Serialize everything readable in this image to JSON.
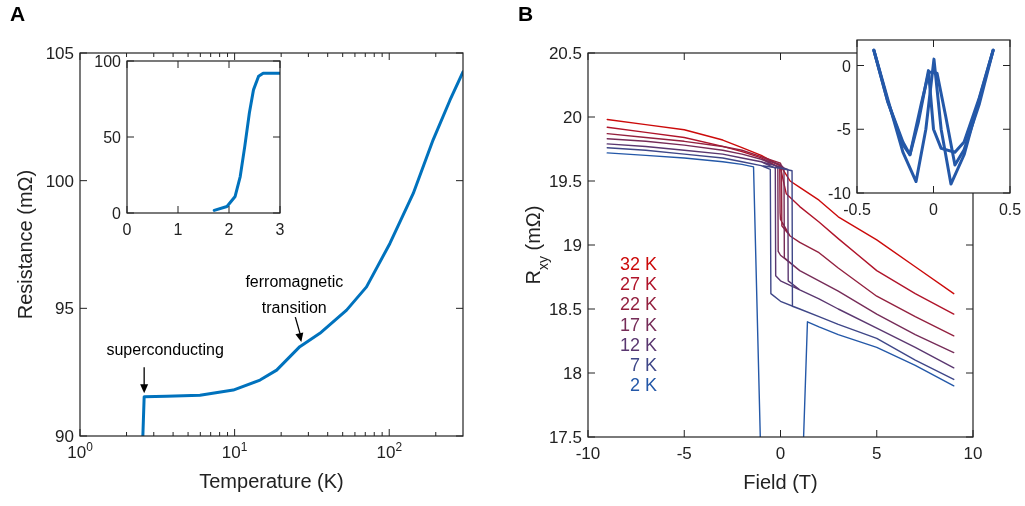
{
  "chart_data": [
    {
      "type": "line",
      "title": "A",
      "xlabel": "Temperature (K)",
      "ylabel": "Resistance (mΩ)",
      "log": "x",
      "color": "#0072bd",
      "x": [
        2.55,
        2.6,
        3.63,
        5.97,
        9.8,
        14.6,
        18.7,
        26.4,
        35.6,
        53,
        71.3,
        101,
        143,
        192,
        247,
        300
      ],
      "values": [
        90,
        91.54,
        91.56,
        91.6,
        91.8,
        92.19,
        92.58,
        93.5,
        94.02,
        94.93,
        95.84,
        97.54,
        99.5,
        101.59,
        103.15,
        104.26
      ],
      "xlim": [
        1,
        300
      ],
      "ylim": [
        90,
        105
      ],
      "xticks": [
        {
          "value": 1,
          "label": "10$^{0}$"
        },
        {
          "value": 2,
          "label": null
        },
        {
          "value": 3,
          "label": null
        },
        {
          "value": 4,
          "label": null
        },
        {
          "value": 5,
          "label": null
        },
        {
          "value": 6,
          "label": null
        },
        {
          "value": 7,
          "label": null
        },
        {
          "value": 8,
          "label": null
        },
        {
          "value": 9,
          "label": null
        },
        {
          "value": 10,
          "label": "10$^{1}$"
        },
        {
          "value": 20,
          "label": null
        },
        {
          "value": 30,
          "label": null
        },
        {
          "value": 40,
          "label": null
        },
        {
          "value": 50,
          "label": null
        },
        {
          "value": 60,
          "label": null
        },
        {
          "value": 70,
          "label": null
        },
        {
          "value": 80,
          "label": null
        },
        {
          "value": 90,
          "label": null
        },
        {
          "value": 100,
          "label": "10$^{2}$"
        },
        {
          "value": 200,
          "label": null
        }
      ],
      "yticks": [
        90,
        95,
        100,
        105
      ],
      "annotations": [
        {
          "text": "superconducting",
          "x": 2.6,
          "y": 91.6
        },
        {
          "text": "ferromagnetic\ntransition",
          "x": 27,
          "y": 93.6
        }
      ]
    },
    {
      "type": "line",
      "color": "#0072bd",
      "x": [
        1.71,
        1.96,
        2.12,
        2.22,
        2.31,
        2.4,
        2.48,
        2.58,
        2.67,
        3
      ],
      "values": [
        1.7,
        4.3,
        10.9,
        24,
        44,
        66,
        81,
        90,
        92,
        92
      ],
      "xlim": [
        0,
        3
      ],
      "ylim": [
        0,
        100
      ],
      "xticks": [
        0,
        1,
        2,
        3
      ],
      "yticks": [
        0,
        50,
        100
      ]
    },
    {
      "type": "line",
      "title": "B",
      "xlabel": "Field (T)",
      "ylabel": "R$_{xy}$ (mΩ)",
      "legend": "left",
      "xlim": [
        -10,
        10
      ],
      "ylim": [
        17.5,
        20.5
      ],
      "xticks": [
        -10,
        -5,
        0,
        5,
        10
      ],
      "yticks": [
        17.5,
        18,
        18.5,
        19,
        19.5,
        20,
        20.5
      ],
      "series": [
        {
          "name": "32 K",
          "color": "#cc0a0a",
          "x": [
            -9,
            -7,
            -5,
            -3,
            -2,
            -1,
            0,
            0.5,
            1,
            2,
            3,
            5,
            7,
            9
          ],
          "values": [
            19.98,
            19.94,
            19.9,
            19.82,
            19.76,
            19.7,
            19.62,
            19.5,
            19.45,
            19.35,
            19.22,
            19.04,
            18.83,
            18.62
          ]
        },
        {
          "name": "27 K",
          "color": "#b0142a",
          "x": [
            -9,
            -7,
            -5,
            -3,
            -2,
            -1,
            0,
            0.3,
            1,
            2,
            3,
            5,
            7,
            9
          ],
          "values": [
            19.92,
            19.88,
            19.84,
            19.77,
            19.73,
            19.68,
            19.6,
            19.4,
            19.3,
            19.18,
            19.05,
            18.8,
            18.62,
            18.46
          ]
        },
        {
          "name": "22 K",
          "color": "#93213f",
          "x": [
            -9,
            -7,
            -5,
            -3,
            -2,
            -1,
            0,
            0.05,
            0.07,
            0.5,
            1,
            2,
            3,
            5,
            7,
            9,
            5,
            1,
            0.5,
            0,
            -0.02,
            -0.04,
            -1
          ],
          "values": [
            19.87,
            19.84,
            19.81,
            19.77,
            19.74,
            19.69,
            19.64,
            19.6,
            19.15,
            19.07,
            19.02,
            18.94,
            18.82,
            18.6,
            18.44,
            18.29,
            null,
            19.02,
            19.07,
            19.2,
            19.25,
            19.62,
            19.69
          ]
        },
        {
          "name": "17 K",
          "color": "#762c58",
          "x": [
            -9,
            -7,
            -5,
            -3,
            -2,
            -1,
            0,
            0.18,
            0.2,
            1,
            2,
            3,
            5,
            7,
            9,
            5,
            1,
            0,
            -0.12,
            -0.14,
            -1
          ],
          "values": [
            19.83,
            19.81,
            19.78,
            19.74,
            19.71,
            19.67,
            19.63,
            19.6,
            18.9,
            18.8,
            18.72,
            18.64,
            18.46,
            18.3,
            18.16,
            null,
            18.8,
            18.92,
            18.95,
            19.61,
            19.67
          ]
        },
        {
          "name": "12 K",
          "color": "#5a3770",
          "x": [
            -9,
            -7,
            -5,
            -3,
            -2,
            -1,
            0,
            0.38,
            0.4,
            1,
            2,
            3,
            5,
            7,
            9,
            5,
            1,
            0,
            -0.25,
            -0.27,
            -1
          ],
          "values": [
            19.79,
            19.77,
            19.74,
            19.71,
            19.68,
            19.65,
            19.61,
            19.59,
            18.72,
            18.65,
            18.58,
            18.5,
            18.35,
            18.2,
            18.04,
            null,
            18.65,
            18.72,
            18.76,
            19.6,
            19.65
          ]
        },
        {
          "name": "7 K",
          "color": "#3f4788",
          "x": [
            -9,
            -7,
            -5,
            -3,
            -2,
            -1,
            0,
            0.6,
            0.62,
            1,
            2,
            3,
            5,
            7,
            9,
            5,
            1,
            0,
            -0.5,
            -0.53,
            -1
          ],
          "values": [
            19.76,
            19.74,
            19.71,
            19.68,
            19.65,
            19.62,
            19.6,
            19.58,
            18.52,
            18.5,
            18.44,
            18.38,
            18.27,
            18.1,
            17.95,
            null,
            18.5,
            18.56,
            18.62,
            19.59,
            19.62
          ]
        },
        {
          "name": "2 K",
          "color": "#2458a8",
          "x": [
            -9,
            -7,
            -5,
            -3,
            -2,
            -1.4,
            -1.05,
            0,
            1.2,
            1.4,
            2,
            3,
            5,
            7,
            9
          ],
          "values": [
            19.72,
            19.7,
            19.68,
            19.65,
            19.63,
            19.61,
            17.5,
            null,
            17.5,
            18.4,
            18.36,
            18.3,
            18.2,
            18.06,
            17.9
          ]
        }
      ]
    },
    {
      "type": "line",
      "xlim": [
        -0.5,
        0.5
      ],
      "ylim": [
        -10,
        2
      ],
      "xticks": [
        -0.5,
        0,
        0.5
      ],
      "yticks": [
        -10,
        -5,
        0
      ],
      "series": [
        {
          "color": "#2458a8",
          "x": [
            -0.39,
            -0.3,
            -0.2,
            -0.114,
            -0.05,
            0.003,
            0.05,
            0.114,
            0.2,
            0.3,
            0.39
          ],
          "values": [
            1.2,
            -2.6,
            -6.8,
            -9.1,
            -5,
            0.5,
            -5,
            -9.3,
            -7,
            -2.6,
            1.2
          ]
        },
        {
          "color": "#2458a8",
          "x": [
            -0.39,
            -0.3,
            -0.2,
            -0.154,
            -0.1,
            -0.033,
            0,
            0.05,
            0.14,
            0.2,
            0.3,
            0.39
          ],
          "values": [
            1.2,
            -2.8,
            -6,
            -7,
            -4.5,
            -0.4,
            -5,
            -6.5,
            -6.8,
            -6,
            -2.5,
            1.2
          ]
        },
        {
          "color": "#2458a8",
          "x": [
            -0.39,
            -0.3,
            -0.2,
            -0.154,
            -0.08,
            -0.03,
            0.023,
            0.08,
            0.14,
            0.2,
            0.3,
            0.39
          ],
          "values": [
            1.2,
            -2.8,
            -6.2,
            -7,
            -3,
            -0.5,
            -0.6,
            -4,
            -7.8,
            -6.6,
            -3,
            1.2
          ]
        }
      ]
    }
  ]
}
